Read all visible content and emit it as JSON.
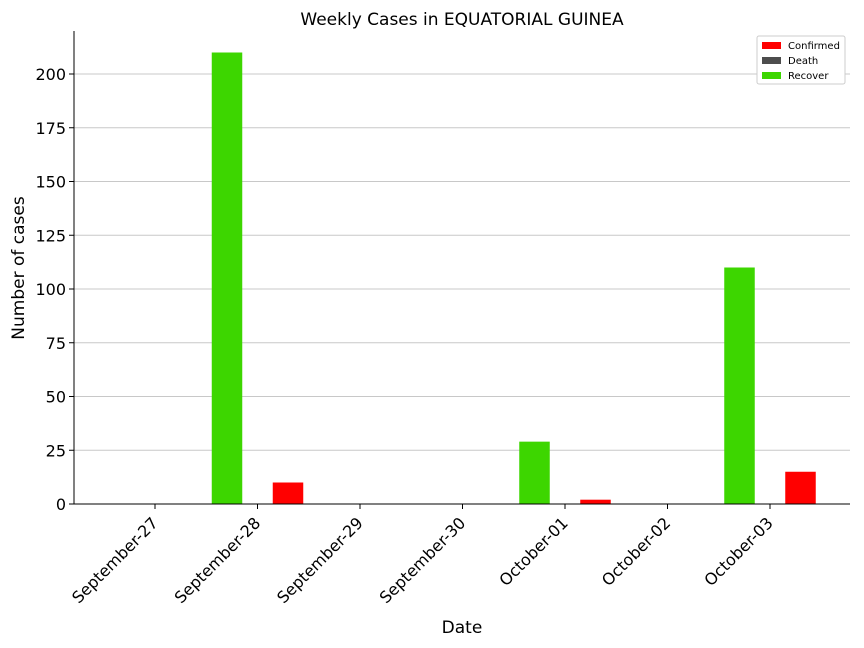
{
  "chart_data": {
    "type": "bar",
    "title": "Weekly Cases in EQUATORIAL GUINEA",
    "xlabel": "Date",
    "ylabel": "Number of cases",
    "categories": [
      "September-27",
      "September-28",
      "September-29",
      "September-30",
      "October-01",
      "October-02",
      "October-03"
    ],
    "series": [
      {
        "name": "Confirmed",
        "color": "#ff0000",
        "values": [
          0,
          10,
          0,
          0,
          2,
          0,
          15
        ]
      },
      {
        "name": "Death",
        "color": "#4d4d4d",
        "values": [
          0,
          0,
          0,
          0,
          0,
          0,
          0
        ]
      },
      {
        "name": "Recover",
        "color": "#3dd600",
        "values": [
          0,
          210,
          0,
          0,
          29,
          0,
          110
        ]
      }
    ],
    "ylim": [
      0,
      220
    ],
    "yticks": [
      0,
      25,
      50,
      75,
      100,
      125,
      150,
      175,
      200
    ],
    "grid": "horizontal",
    "legend": "top-right"
  }
}
